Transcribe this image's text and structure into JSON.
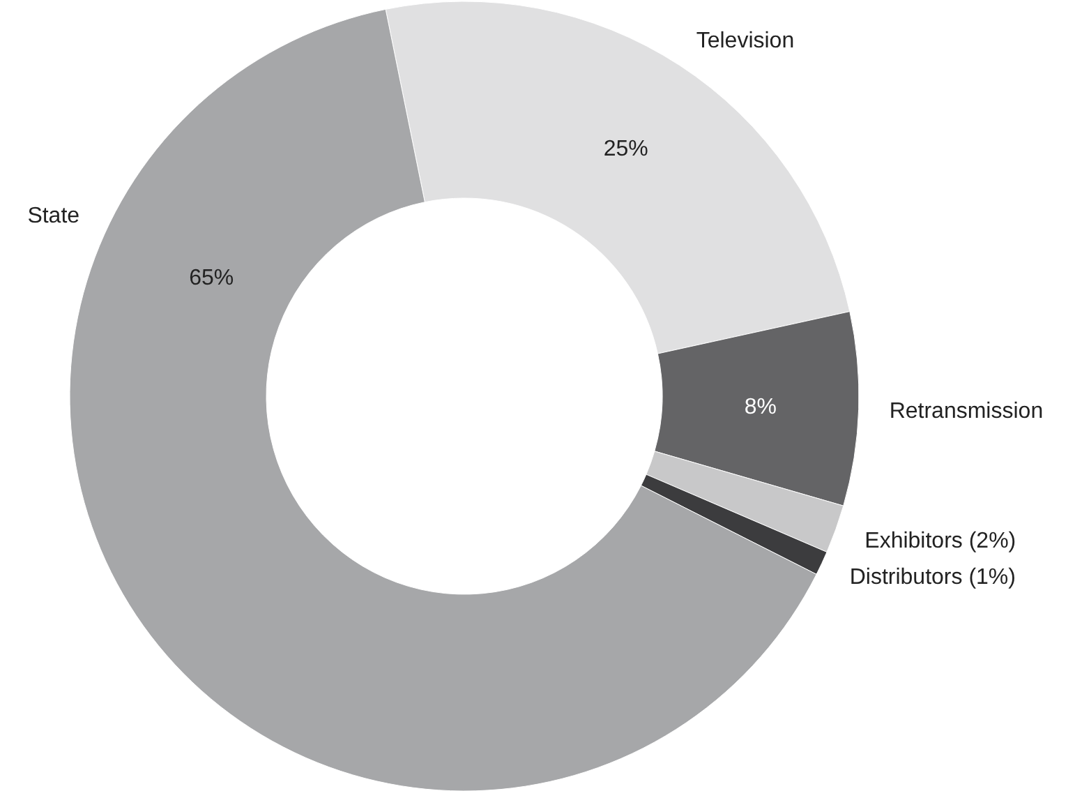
{
  "chart_data": {
    "type": "donut",
    "categories": [
      "Television",
      "Retransmission",
      "Exhibitors (2%)",
      "Distributors (1%)",
      "State"
    ],
    "values": [
      25,
      8,
      2,
      1,
      65
    ],
    "colors": [
      "#e0e0e1",
      "#646466",
      "#c8c8c9",
      "#3c3c3e",
      "#a6a7a9"
    ],
    "value_labels": [
      "25%",
      "8%",
      null,
      null,
      "65%"
    ]
  }
}
